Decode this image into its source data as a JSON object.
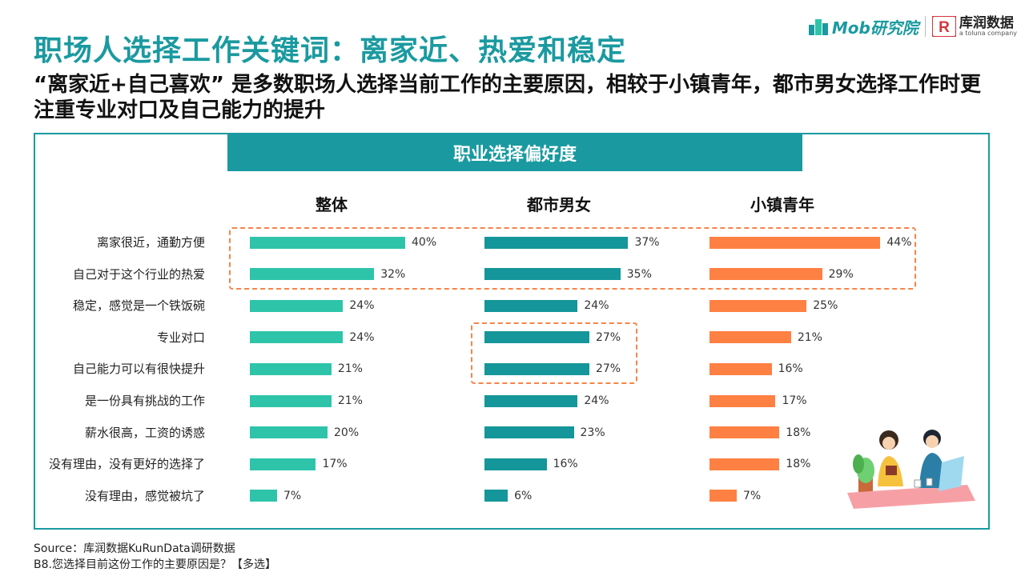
{
  "header": {
    "title": "职场人选择工作关键词：离家近、热爱和稳定",
    "subtitle": "“离家近+自己喜欢” 是多数职场人选择当前工作的主要原因，相较于小镇青年，都市男女选择工作时更注重专业对口及自己能力的提升"
  },
  "logos": {
    "mob": "Mob研究院",
    "kurun": "库润数据",
    "kurun_sub": "a toluna company",
    "kurun_mark": "R"
  },
  "panel": {
    "header": "职业选择偏好度"
  },
  "chart_data": {
    "type": "bar",
    "orientation": "horizontal",
    "title": "职业选择偏好度",
    "categories": [
      "离家很近，通勤方便",
      "自己对于这个行业的热爱",
      "稳定，感觉是一个铁饭碗",
      "专业对口",
      "自己能力可以有很快提升",
      "是一份具有挑战的工作",
      "薪水很高，工资的诱惑",
      "没有理由，没有更好的选择了",
      "没有理由，感觉被坑了"
    ],
    "series": [
      {
        "name": "整体",
        "color": "#2ec4aa",
        "values": [
          40,
          32,
          24,
          24,
          21,
          21,
          20,
          17,
          7
        ],
        "labels": [
          "40%",
          "32%",
          "24%",
          "24%",
          "21%",
          "21%",
          "20%",
          "17%",
          "7%"
        ]
      },
      {
        "name": "都市男女",
        "color": "#14969a",
        "values": [
          37,
          35,
          24,
          27,
          27,
          24,
          23,
          16,
          6
        ],
        "labels": [
          "37%",
          "35%",
          "24%",
          "27%",
          "27%",
          "24%",
          "23%",
          "16%",
          "6%"
        ]
      },
      {
        "name": "小镇青年",
        "color": "#ff8043",
        "values": [
          44,
          29,
          25,
          21,
          16,
          17,
          18,
          18,
          7
        ],
        "labels": [
          "44%",
          "29%",
          "25%",
          "21%",
          "16%",
          "17%",
          "18%",
          "18%",
          "7%"
        ]
      }
    ],
    "unit": "%",
    "highlights": [
      {
        "series": "all",
        "categories": [
          "离家很近，通勤方便",
          "自己对于这个行业的热爱"
        ]
      },
      {
        "series": "都市男女",
        "categories": [
          "专业对口",
          "自己能力可以有很快提升"
        ]
      }
    ],
    "highlight_color": "#f5854a"
  },
  "footer": {
    "source": "Source：库润数据KuRunData调研数据",
    "question": "B8.您选择目前这份工作的主要原因是？【多选】"
  }
}
